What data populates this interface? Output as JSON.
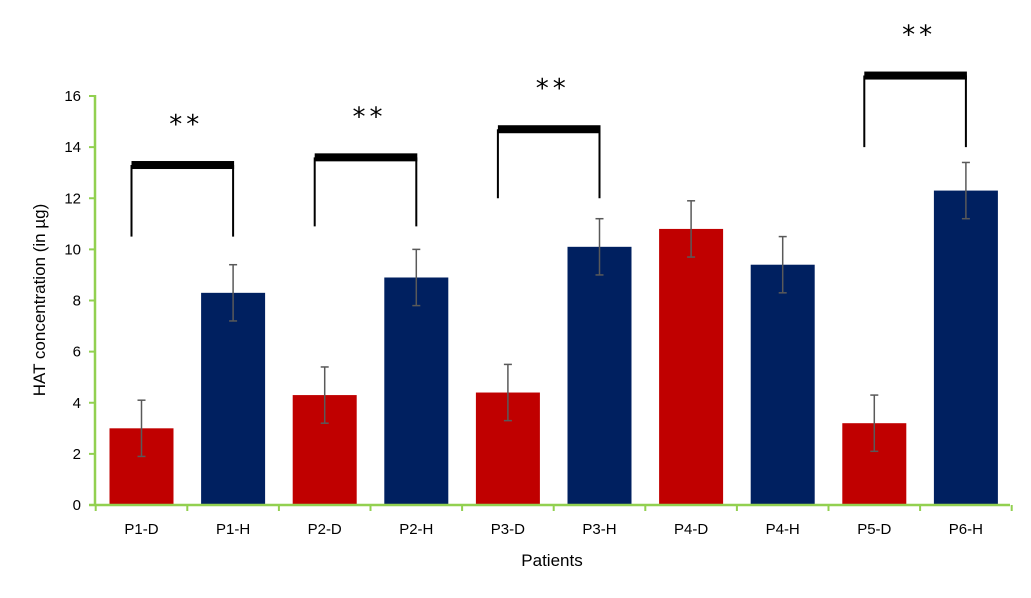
{
  "chart_data": {
    "type": "bar",
    "title": "",
    "xlabel": "Patients",
    "ylabel": "HAT concentration (in µg)",
    "ylim": [
      0,
      16
    ],
    "yticks": [
      0,
      2,
      4,
      6,
      8,
      10,
      12,
      14,
      16
    ],
    "grid": false,
    "legend": "none",
    "categories": [
      "P1-D",
      "P1-H",
      "P2-D",
      "P2-H",
      "P3-D",
      "P3-H",
      "P4-D",
      "P4-H",
      "P5-D",
      "P6-H"
    ],
    "values": [
      3.0,
      8.3,
      4.3,
      8.9,
      4.4,
      10.1,
      10.8,
      9.4,
      3.2,
      12.3
    ],
    "errors": [
      1.1,
      1.1,
      1.1,
      1.1,
      1.1,
      1.1,
      1.1,
      1.1,
      1.1,
      1.1
    ],
    "bar_colors": [
      "#c00000",
      "#002060",
      "#c00000",
      "#002060",
      "#c00000",
      "#002060",
      "#c00000",
      "#002060",
      "#c00000",
      "#002060"
    ],
    "axis_color": "#92d050",
    "significance": [
      {
        "from": 0,
        "to": 1,
        "label": "**",
        "left_end": 10.5,
        "right_end": 10.5,
        "top": 13.3
      },
      {
        "from": 2,
        "to": 3,
        "label": "**",
        "left_end": 10.9,
        "right_end": 10.9,
        "top": 13.6
      },
      {
        "from": 4,
        "to": 5,
        "label": "**",
        "left_end": 12.0,
        "right_end": 12.0,
        "top": 14.7
      },
      {
        "from": 8,
        "to": 9,
        "label": "**",
        "left_end": 14.0,
        "right_end": 14.0,
        "top": 16.8
      }
    ]
  }
}
